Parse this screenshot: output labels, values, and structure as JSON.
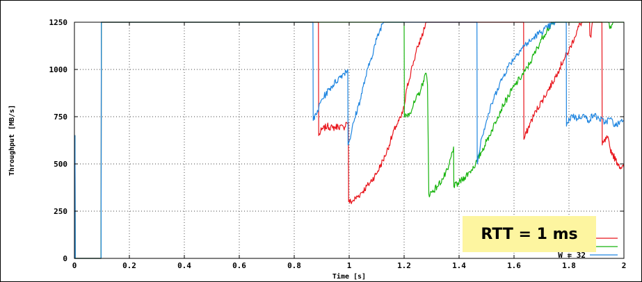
{
  "chart_data": {
    "type": "line",
    "title": "",
    "xlabel": "Time [s]",
    "ylabel": "Throughput [MB/s]",
    "xlim": [
      0,
      2
    ],
    "ylim": [
      0,
      1250
    ],
    "x_ticks": [
      "0",
      "0.2",
      "0.4",
      "0.6",
      "0.8",
      "1",
      "1.2",
      "1.4",
      "1.6",
      "1.8",
      "2"
    ],
    "y_ticks": [
      "0",
      "250",
      "500",
      "750",
      "1000",
      "1250"
    ],
    "grid": true,
    "legend_position": "bottom-right",
    "annotation": "RTT = 1 ms",
    "series": [
      {
        "name": "",
        "color": "#e8141b",
        "points": [
          [
            0.0,
            0
          ],
          [
            0.001,
            0
          ],
          [
            0.002,
            650
          ],
          [
            0.003,
            0
          ],
          [
            0.097,
            0
          ],
          [
            0.098,
            1250
          ],
          [
            0.888,
            1250
          ],
          [
            0.889,
            650
          ],
          [
            0.9,
            680
          ],
          [
            0.92,
            700
          ],
          [
            0.94,
            690
          ],
          [
            0.96,
            700
          ],
          [
            0.98,
            690
          ],
          [
            0.99,
            720
          ],
          [
            0.997,
            720
          ],
          [
            0.998,
            300
          ],
          [
            1.01,
            300
          ],
          [
            1.04,
            340
          ],
          [
            1.07,
            390
          ],
          [
            1.1,
            450
          ],
          [
            1.13,
            540
          ],
          [
            1.15,
            620
          ],
          [
            1.17,
            700
          ],
          [
            1.19,
            750
          ],
          [
            1.2,
            800
          ],
          [
            1.21,
            900
          ],
          [
            1.23,
            1020
          ],
          [
            1.25,
            1120
          ],
          [
            1.27,
            1200
          ],
          [
            1.28,
            1250
          ],
          [
            1.635,
            1250
          ],
          [
            1.636,
            630
          ],
          [
            1.66,
            720
          ],
          [
            1.68,
            780
          ],
          [
            1.7,
            830
          ],
          [
            1.72,
            880
          ],
          [
            1.74,
            930
          ],
          [
            1.76,
            990
          ],
          [
            1.78,
            1050
          ],
          [
            1.8,
            1100
          ],
          [
            1.82,
            1170
          ],
          [
            1.84,
            1240
          ],
          [
            1.85,
            1250
          ],
          [
            1.875,
            1250
          ],
          [
            1.876,
            1180
          ],
          [
            1.88,
            1170
          ],
          [
            1.885,
            1250
          ],
          [
            1.92,
            1250
          ],
          [
            1.921,
            600
          ],
          [
            1.94,
            640
          ],
          [
            1.95,
            580
          ],
          [
            1.96,
            550
          ],
          [
            1.97,
            520
          ],
          [
            1.98,
            500
          ],
          [
            1.99,
            480
          ],
          [
            2.0,
            480
          ]
        ]
      },
      {
        "name": "",
        "color": "#16b30c",
        "points": [
          [
            0.0,
            0
          ],
          [
            0.001,
            0
          ],
          [
            0.002,
            650
          ],
          [
            0.003,
            0
          ],
          [
            0.097,
            0
          ],
          [
            0.098,
            1250
          ],
          [
            1.2,
            1250
          ],
          [
            1.201,
            750
          ],
          [
            1.22,
            770
          ],
          [
            1.24,
            830
          ],
          [
            1.26,
            890
          ],
          [
            1.27,
            940
          ],
          [
            1.28,
            980
          ],
          [
            1.285,
            920
          ],
          [
            1.29,
            340
          ],
          [
            1.3,
            350
          ],
          [
            1.32,
            380
          ],
          [
            1.34,
            420
          ],
          [
            1.36,
            470
          ],
          [
            1.38,
            590
          ],
          [
            1.381,
            380
          ],
          [
            1.4,
            400
          ],
          [
            1.42,
            430
          ],
          [
            1.44,
            460
          ],
          [
            1.46,
            500
          ],
          [
            1.48,
            560
          ],
          [
            1.5,
            620
          ],
          [
            1.52,
            680
          ],
          [
            1.54,
            750
          ],
          [
            1.56,
            810
          ],
          [
            1.58,
            860
          ],
          [
            1.6,
            910
          ],
          [
            1.62,
            950
          ],
          [
            1.64,
            990
          ],
          [
            1.66,
            1040
          ],
          [
            1.68,
            1100
          ],
          [
            1.7,
            1160
          ],
          [
            1.72,
            1210
          ],
          [
            1.74,
            1240
          ],
          [
            1.75,
            1250
          ],
          [
            1.94,
            1250
          ],
          [
            1.95,
            1230
          ],
          [
            1.96,
            1250
          ],
          [
            2.0,
            1250
          ]
        ]
      },
      {
        "name": "W = 32",
        "color": "#1e85e0",
        "points": [
          [
            0.0,
            0
          ],
          [
            0.001,
            0
          ],
          [
            0.002,
            650
          ],
          [
            0.003,
            0
          ],
          [
            0.097,
            0
          ],
          [
            0.098,
            1250
          ],
          [
            0.868,
            1250
          ],
          [
            0.869,
            730
          ],
          [
            0.88,
            760
          ],
          [
            0.9,
            840
          ],
          [
            0.93,
            900
          ],
          [
            0.96,
            950
          ],
          [
            0.98,
            980
          ],
          [
            0.995,
            1000
          ],
          [
            0.996,
            600
          ],
          [
            1.0,
            620
          ],
          [
            1.02,
            740
          ],
          [
            1.04,
            840
          ],
          [
            1.06,
            960
          ],
          [
            1.08,
            1060
          ],
          [
            1.1,
            1160
          ],
          [
            1.12,
            1240
          ],
          [
            1.125,
            1250
          ],
          [
            1.465,
            1250
          ],
          [
            1.466,
            500
          ],
          [
            1.48,
            630
          ],
          [
            1.5,
            730
          ],
          [
            1.52,
            820
          ],
          [
            1.54,
            900
          ],
          [
            1.56,
            960
          ],
          [
            1.58,
            1020
          ],
          [
            1.6,
            1060
          ],
          [
            1.62,
            1100
          ],
          [
            1.64,
            1130
          ],
          [
            1.66,
            1150
          ],
          [
            1.68,
            1180
          ],
          [
            1.7,
            1200
          ],
          [
            1.72,
            1220
          ],
          [
            1.74,
            1240
          ],
          [
            1.75,
            1250
          ],
          [
            1.79,
            1250
          ],
          [
            1.791,
            700
          ],
          [
            1.81,
            760
          ],
          [
            1.83,
            740
          ],
          [
            1.85,
            760
          ],
          [
            1.87,
            730
          ],
          [
            1.89,
            760
          ],
          [
            1.91,
            740
          ],
          [
            1.93,
            720
          ],
          [
            1.95,
            740
          ],
          [
            1.97,
            700
          ],
          [
            1.99,
            730
          ],
          [
            2.0,
            730
          ]
        ]
      }
    ]
  }
}
